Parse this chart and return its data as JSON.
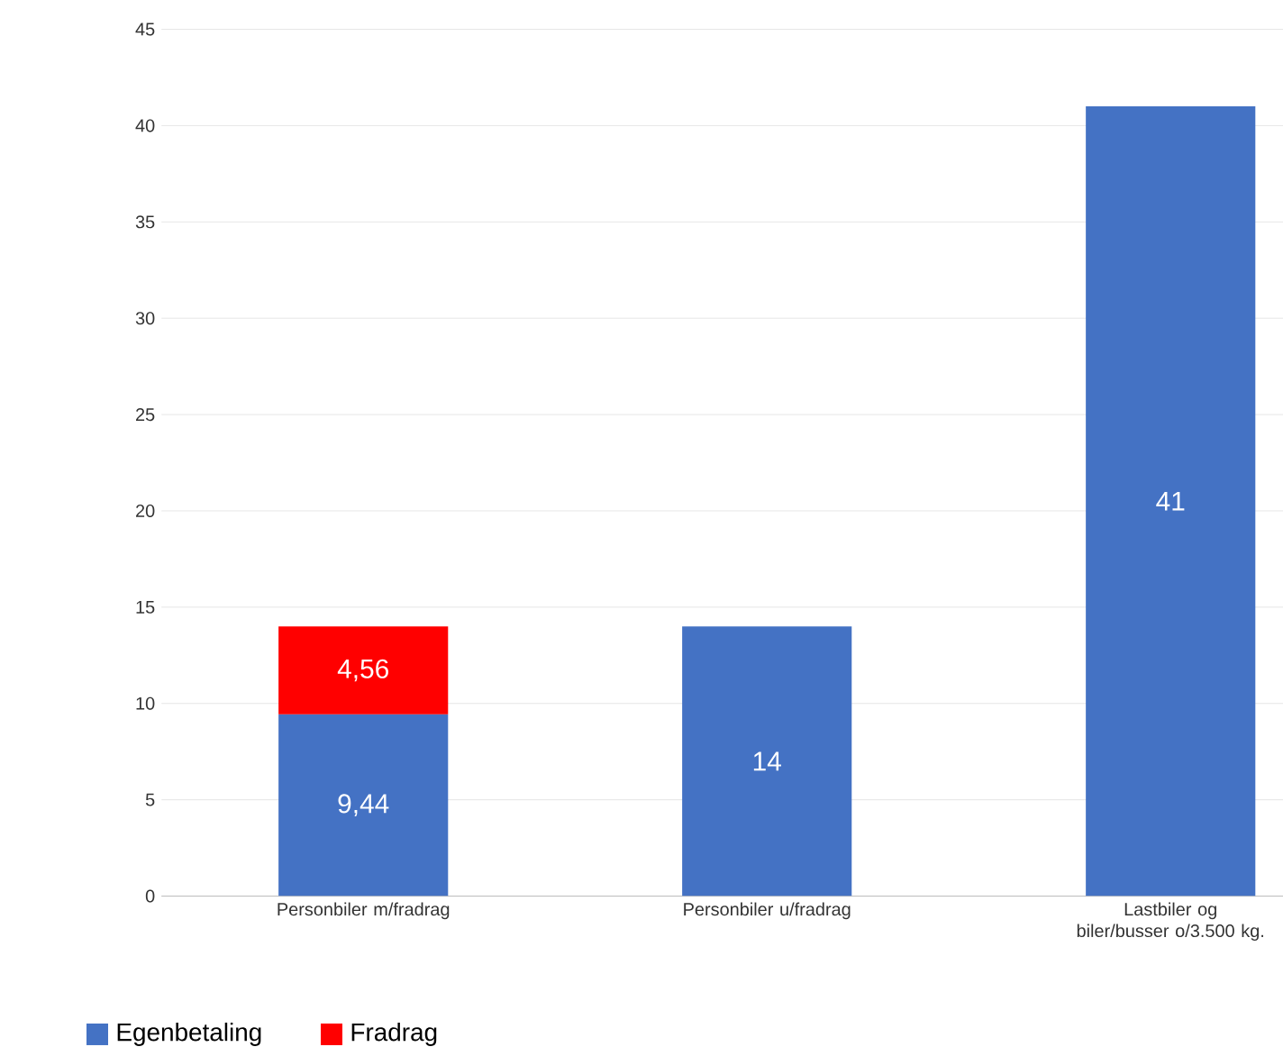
{
  "chart_data": {
    "type": "bar",
    "stacked": true,
    "categories": [
      "Personbiler m/fradrag",
      "Personbiler u/fradrag",
      "Lastbiler og biler/busser o/3.500 kg."
    ],
    "series": [
      {
        "name": "Egenbetaling",
        "color": "#4472c4",
        "values": [
          9.44,
          14,
          41
        ],
        "value_labels": [
          "9,44",
          "14",
          "41"
        ]
      },
      {
        "name": "Fradrag",
        "color": "#ff0000",
        "values": [
          4.56,
          null,
          null
        ],
        "value_labels": [
          "4,56",
          null,
          null
        ]
      }
    ],
    "ylim": [
      0,
      45
    ],
    "yticks": [
      0,
      5,
      10,
      15,
      20,
      25,
      30,
      35,
      40,
      45
    ],
    "grid": "y",
    "legend": "bottom left"
  }
}
